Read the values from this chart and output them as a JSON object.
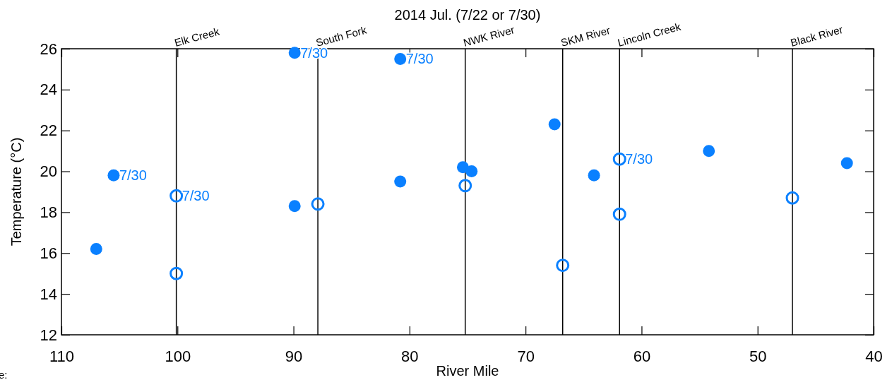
{
  "chart_data": {
    "type": "scatter",
    "title": "2014 Jul. (7/22 or 7/30)",
    "xlabel": "River Mile",
    "ylabel": "Temperature (°C)",
    "xlim": [
      110,
      40
    ],
    "xticks": [
      110,
      100,
      90,
      80,
      70,
      60,
      50,
      40
    ],
    "ylim": [
      12,
      26
    ],
    "yticks": [
      12,
      14,
      16,
      18,
      20,
      22,
      24,
      26
    ],
    "marker": "circle",
    "series": [
      {
        "color": "#0a80ff",
        "x": [
          107.0,
          105.5,
          89.9,
          89.9,
          80.8,
          80.8,
          75.4,
          74.65,
          67.5,
          64.1,
          54.2,
          42.3
        ],
        "values": [
          16.2,
          19.8,
          25.8,
          18.3,
          25.5,
          19.5,
          20.2,
          20.0,
          22.3,
          19.8,
          21.0,
          20.4
        ]
      },
      {
        "color": "#0a80ff",
        "x": [
          100.1,
          100.1,
          87.9,
          75.2,
          66.8,
          61.9,
          61.9,
          47.0
        ],
        "values": [
          18.8,
          15.0,
          18.4,
          19.3,
          15.4,
          20.6,
          17.9,
          18.7
        ]
      }
    ],
    "ref_lines": [
      {
        "axis": "x",
        "value": 100.1,
        "label": "Elk Creek",
        "color": "#000000"
      },
      {
        "axis": "x",
        "value": 87.9,
        "label": "South Fork",
        "color": "#000000"
      },
      {
        "axis": "x",
        "value": 75.2,
        "label": "NWK River",
        "color": "#000000"
      },
      {
        "axis": "x",
        "value": 66.8,
        "label": "SKM River",
        "color": "#000000"
      },
      {
        "axis": "x",
        "value": 61.9,
        "label": "Lincoln Creek",
        "color": "#000000"
      },
      {
        "axis": "x",
        "value": 47.0,
        "label": "Black River",
        "color": "#000000"
      }
    ],
    "annotations": [
      {
        "text": "7/30",
        "x": 105.5,
        "y": 19.8
      },
      {
        "text": "7/30",
        "x": 100.1,
        "y": 18.8
      },
      {
        "text": "7/30",
        "x": 89.9,
        "y": 25.8
      },
      {
        "text": "7/30",
        "x": 80.8,
        "y": 25.5
      },
      {
        "text": "7/30",
        "x": 61.9,
        "y": 20.6
      },
      "e:"
    ]
  }
}
